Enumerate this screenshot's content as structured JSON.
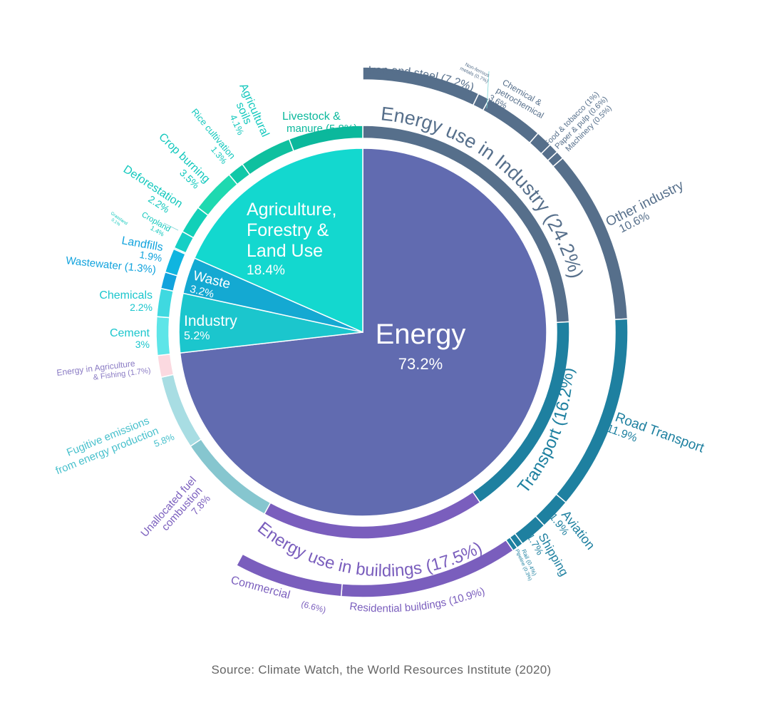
{
  "chart_data": {
    "type": "pie",
    "sectors": [
      {
        "name": "Energy",
        "value": 73.2,
        "label": "73.2%",
        "color": "#616bb0"
      },
      {
        "name": "Industry",
        "value": 5.2,
        "label": "5.2%",
        "color": "#1bc6cd"
      },
      {
        "name": "Waste",
        "value": 3.2,
        "label": "3.2%",
        "color": "#14a9d2"
      },
      {
        "name": "Agriculture, Forestry & Land Use",
        "value": 18.4,
        "label": "18.4%",
        "color": "#13d8cf"
      }
    ],
    "subsectors": [
      {
        "name": "Energy use in Industry",
        "value": 24.2,
        "label": "Energy use in Industry (24.2%)",
        "group": "Energy",
        "color": "#566f8b"
      },
      {
        "name": "Transport",
        "value": 16.2,
        "label": "Transport (16.2%)",
        "group": "Energy",
        "color": "#1e80a0"
      },
      {
        "name": "Energy use in buildings",
        "value": 17.5,
        "label": "Energy use in buildings (17.5%)",
        "group": "Energy",
        "color": "#7a5ebd"
      },
      {
        "name": "Unallocated fuel combustion",
        "value": 7.8,
        "group": "Energy",
        "color": "#86c6cf"
      },
      {
        "name": "Fugitive emissions from energy production",
        "value": 5.8,
        "group": "Energy",
        "color": "#a8dde3"
      },
      {
        "name": "Energy in Agriculture & Fishing",
        "value": 1.7,
        "group": "Energy",
        "color": "#fbd9e0"
      },
      {
        "name": "Cement",
        "value": 3.0,
        "group": "Industry",
        "color": "#5ee5e8"
      },
      {
        "name": "Chemicals",
        "value": 2.2,
        "group": "Industry",
        "color": "#3fd9e0"
      },
      {
        "name": "Wastewater",
        "value": 1.3,
        "group": "Waste",
        "color": "#12a3dd"
      },
      {
        "name": "Landfills",
        "value": 1.9,
        "group": "Waste",
        "color": "#0fb5e0"
      },
      {
        "name": "Grassland",
        "value": 0.1,
        "group": "Agriculture",
        "color": "#1ad6cf"
      },
      {
        "name": "Cropland",
        "value": 1.4,
        "group": "Agriculture",
        "color": "#16cfc5"
      },
      {
        "name": "Deforestation",
        "value": 2.2,
        "group": "Agriculture",
        "color": "#12d0b8"
      },
      {
        "name": "Crop burning",
        "value": 3.5,
        "group": "Agriculture",
        "color": "#1ed9b0"
      },
      {
        "name": "Rice cultivation",
        "value": 1.3,
        "group": "Agriculture",
        "color": "#10c8a8"
      },
      {
        "name": "Agricultural soils",
        "value": 4.1,
        "group": "Agriculture",
        "color": "#0fc09f"
      },
      {
        "name": "Livestock & manure",
        "value": 5.8,
        "group": "Agriculture",
        "color": "#0bb89c"
      }
    ],
    "detail": [
      {
        "name": "Iron and steel",
        "value": 7.2,
        "group": "Energy use in Industry"
      },
      {
        "name": "Non-ferrous metals",
        "value": 0.7,
        "group": "Energy use in Industry"
      },
      {
        "name": "Chemical & petrochemical",
        "value": 3.6,
        "group": "Energy use in Industry"
      },
      {
        "name": "Food & tobacco",
        "value": 1.0,
        "group": "Energy use in Industry"
      },
      {
        "name": "Paper & pulp",
        "value": 0.6,
        "group": "Energy use in Industry"
      },
      {
        "name": "Machinery",
        "value": 0.5,
        "group": "Energy use in Industry"
      },
      {
        "name": "Other industry",
        "value": 10.6,
        "group": "Energy use in Industry"
      },
      {
        "name": "Road Transport",
        "value": 11.9,
        "group": "Transport"
      },
      {
        "name": "Aviation",
        "value": 1.9,
        "group": "Transport"
      },
      {
        "name": "Shipping",
        "value": 1.7,
        "group": "Transport"
      },
      {
        "name": "Rail",
        "value": 0.4,
        "group": "Transport"
      },
      {
        "name": "Pipeline",
        "value": 0.3,
        "group": "Transport"
      },
      {
        "name": "Residential buildings",
        "value": 10.9,
        "group": "Energy use in buildings"
      },
      {
        "name": "Commercial",
        "value": 6.6,
        "group": "Energy use in buildings"
      }
    ],
    "labels": {
      "energy": {
        "name": "Energy",
        "pct": "73.2%"
      },
      "agri": {
        "line1": "Agriculture,",
        "line2": "Forestry &",
        "line3": "Land Use",
        "pct": "18.4%"
      },
      "waste": {
        "name": "Waste",
        "pct": "3.2%"
      },
      "industry": {
        "name": "Industry",
        "pct": "5.2%"
      },
      "energy_industry": "Energy use in Industry (24.2%)",
      "transport": "Transport (16.2%)",
      "buildings": "Energy use in buildings (17.5%)",
      "iron": "Iron and steel (7.2%)",
      "nonferrous_1": "Non-ferrous",
      "nonferrous_2": "metals (0.7%)",
      "chem_1": "Chemical &",
      "chem_2": "petrochemical",
      "chem_3": "3.6%",
      "food": "Food & tobacco (1%)",
      "paper": "Paper & pulp (0.6%)",
      "machinery": "Machinery (0.5%)",
      "other_ind_1": "Other industry",
      "other_ind_2": "10.6%",
      "road_1": "Road Transport",
      "road_2": "11.9%",
      "aviation_1": "Aviation",
      "aviation_2": "1.9%",
      "shipping_1": "Shipping",
      "shipping_2": "1.7%",
      "rail": "Rail (0.4%)",
      "pipeline": "Pipeline (0.3%)",
      "residential": "Residential buildings (10.9%)",
      "commercial_1": "Commercial",
      "commercial_2": "(6.6%)",
      "unalloc_1": "Unallocated fuel",
      "unalloc_2": "combustion",
      "unalloc_3": "7.8%",
      "fugitive_1": "Fugitive emissions",
      "fugitive_2": "from energy production",
      "fugitive_3": "5.8%",
      "agfish_1": "Energy in Agriculture",
      "agfish_2": "& Fishing (1.7%)",
      "cement_1": "Cement",
      "cement_2": "3%",
      "chemicals_1": "Chemicals",
      "chemicals_2": "2.2%",
      "wastewater": "Wastewater (1.3%)",
      "landfills_1": "Landfills",
      "landfills_2": "1.9%",
      "grassland_1": "Grassland",
      "grassland_2": "0.1%",
      "cropland_1": "Cropland",
      "cropland_2": "1.4%",
      "deforest_1": "Deforestation",
      "deforest_2": "2.2%",
      "cropburn_1": "Crop burning",
      "cropburn_2": "3.5%",
      "rice_1": "Rice cultivation",
      "rice_2": "1.3%",
      "soils_1": "Agricultural",
      "soils_2": "soils",
      "soils_3": "4.1%",
      "livestock_1": "Livestock &",
      "livestock_2": "manure (5.8%)"
    }
  },
  "source": "Source: Climate Watch, the World Resources Institute (2020)"
}
